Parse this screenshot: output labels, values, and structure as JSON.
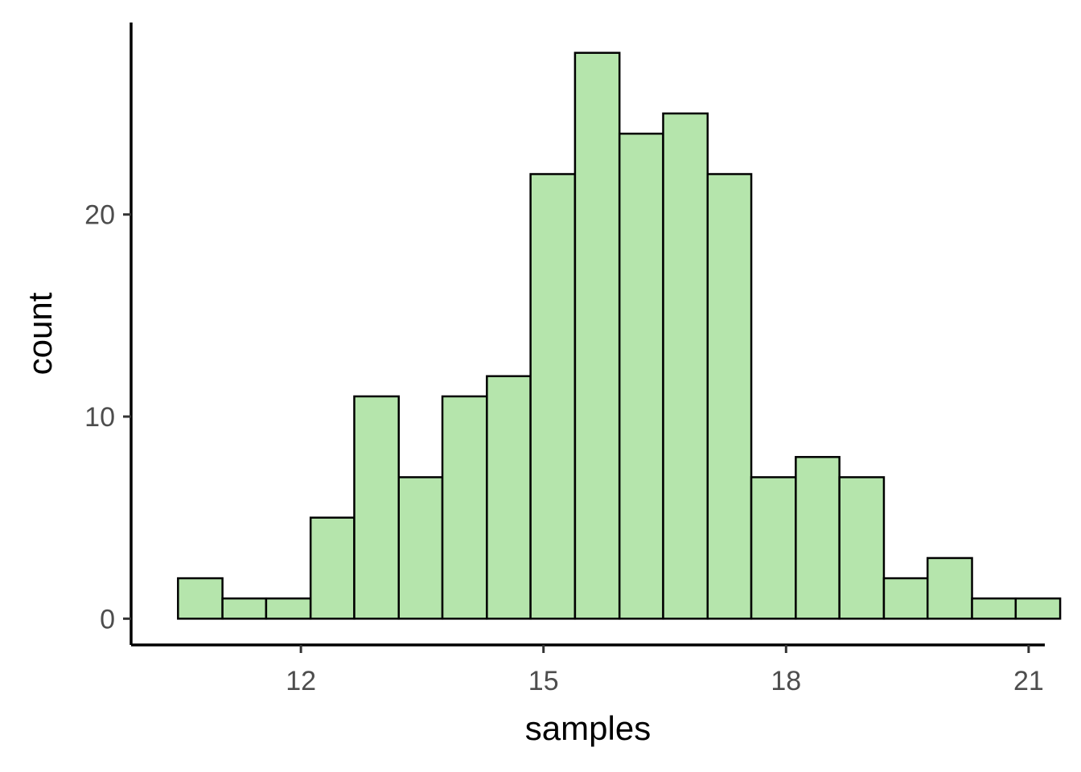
{
  "chart_data": {
    "type": "bar",
    "subtype": "histogram",
    "xlabel": "samples",
    "ylabel": "count",
    "xlim": [
      9.9,
      21.2
    ],
    "ylim": [
      -1.3,
      29.5
    ],
    "x_ticks": [
      12,
      15,
      18,
      21
    ],
    "y_ticks": [
      0,
      10,
      20
    ],
    "grid": false,
    "legend": "none",
    "bar_fill": "#b5e5ac",
    "bar_stroke": "#000000",
    "bin_width": 0.5455,
    "bins": [
      {
        "x0": 10.48,
        "x1": 11.03,
        "count": 2
      },
      {
        "x0": 11.03,
        "x1": 11.57,
        "count": 1
      },
      {
        "x0": 11.57,
        "x1": 12.12,
        "count": 1
      },
      {
        "x0": 12.12,
        "x1": 12.66,
        "count": 5
      },
      {
        "x0": 12.66,
        "x1": 13.21,
        "count": 11
      },
      {
        "x0": 13.21,
        "x1": 13.75,
        "count": 7
      },
      {
        "x0": 13.75,
        "x1": 14.3,
        "count": 11
      },
      {
        "x0": 14.3,
        "x1": 14.84,
        "count": 12
      },
      {
        "x0": 14.84,
        "x1": 15.39,
        "count": 22
      },
      {
        "x0": 15.39,
        "x1": 15.94,
        "count": 28
      },
      {
        "x0": 15.94,
        "x1": 16.48,
        "count": 24
      },
      {
        "x0": 16.48,
        "x1": 17.03,
        "count": 25
      },
      {
        "x0": 17.03,
        "x1": 17.57,
        "count": 22
      },
      {
        "x0": 17.57,
        "x1": 18.12,
        "count": 7
      },
      {
        "x0": 18.12,
        "x1": 18.66,
        "count": 8
      },
      {
        "x0": 18.66,
        "x1": 19.21,
        "count": 7
      },
      {
        "x0": 19.21,
        "x1": 19.75,
        "count": 2
      },
      {
        "x0": 19.75,
        "x1": 20.3,
        "count": 3
      },
      {
        "x0": 20.3,
        "x1": 20.84,
        "count": 1
      },
      {
        "x0": 20.84,
        "x1": 21.39,
        "count": 1
      }
    ]
  }
}
